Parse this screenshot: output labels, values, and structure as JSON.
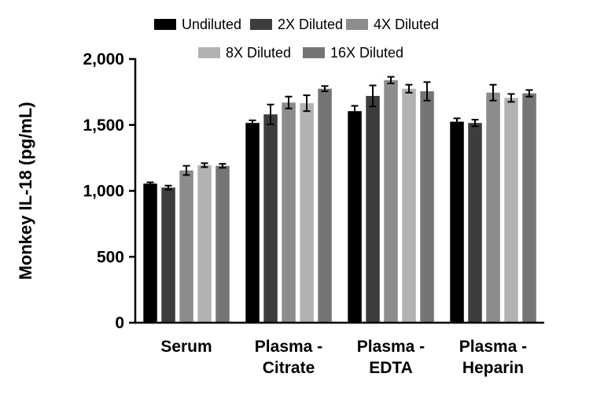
{
  "figure": {
    "background": "#ffffff",
    "axis_color": "#000000",
    "error_bar_color": "#000000"
  },
  "chart_data": {
    "type": "bar",
    "title": "",
    "ylabel": "Monkey IL-18 (pg/mL)",
    "xlabel": "",
    "ylim": [
      0,
      2000
    ],
    "yticks": [
      0,
      500,
      1000,
      1500,
      2000
    ],
    "ytick_labels": [
      "0",
      "500",
      "1,000",
      "1,500",
      "2,000"
    ],
    "categories": [
      "Serum",
      "Plasma -\nCitrate",
      "Plasma -\nEDTA",
      "Plasma -\nHeparin"
    ],
    "grid": false,
    "legend_position": "top",
    "legend_rows": [
      [
        "Undiluted",
        "2X Diluted",
        "4X Diluted"
      ],
      [
        "8X Diluted",
        "16X Diluted"
      ]
    ],
    "error_bars": "mean ± SD",
    "series": [
      {
        "name": "Undiluted",
        "color": "#000000",
        "values": [
          1055,
          1515,
          1605,
          1525
        ],
        "errors": [
          10,
          20,
          40,
          25
        ]
      },
      {
        "name": "2X Diluted",
        "color": "#3d3d3d",
        "values": [
          1025,
          1580,
          1720,
          1515
        ],
        "errors": [
          15,
          75,
          80,
          25
        ]
      },
      {
        "name": "4X Diluted",
        "color": "#8c8c8c",
        "values": [
          1155,
          1670,
          1840,
          1745
        ],
        "errors": [
          35,
          45,
          25,
          60
        ]
      },
      {
        "name": "8X Diluted",
        "color": "#b2b2b2",
        "values": [
          1195,
          1665,
          1775,
          1705
        ],
        "errors": [
          15,
          60,
          30,
          30
        ]
      },
      {
        "name": "16X Diluted",
        "color": "#757575",
        "values": [
          1190,
          1775,
          1755,
          1740
        ],
        "errors": [
          15,
          20,
          70,
          25
        ]
      }
    ]
  }
}
